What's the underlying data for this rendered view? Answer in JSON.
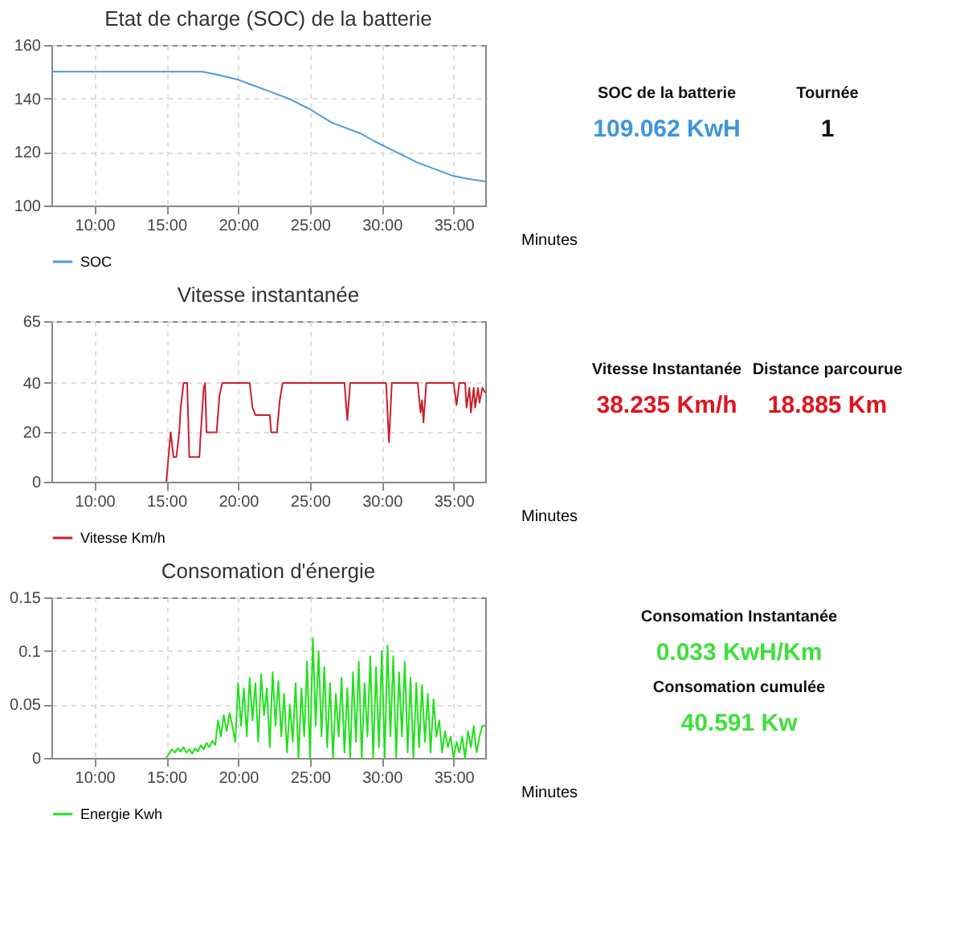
{
  "chart_data": [
    {
      "type": "line",
      "title": "Etat de charge (SOC) de la batterie",
      "xlabel": "Minutes",
      "x": [
        7,
        10,
        15,
        17.5,
        18.5,
        20,
        21,
        22,
        23.5,
        25,
        26.5,
        28.5,
        29.5,
        31,
        32.5,
        34,
        35,
        36,
        37.2
      ],
      "series": [
        {
          "name": "SOC",
          "color": "#4a9be0",
          "values": [
            150,
            150,
            150,
            150,
            149,
            147,
            145,
            143,
            140,
            136,
            131,
            127,
            124,
            120,
            116,
            113,
            111,
            110,
            109
          ]
        }
      ],
      "xlim": [
        7,
        37.2
      ],
      "xticks": [
        {
          "value": 10,
          "label": "10:00"
        },
        {
          "value": 15,
          "label": "15:00"
        },
        {
          "value": 20,
          "label": "20:00"
        },
        {
          "value": 25,
          "label": "25:00"
        },
        {
          "value": 30,
          "label": "30:00"
        },
        {
          "value": 35,
          "label": "35:00"
        }
      ],
      "ylim": [
        100,
        160
      ],
      "yticks": [
        100,
        120,
        140,
        160
      ],
      "grid": true,
      "legend": "bottom"
    },
    {
      "type": "other",
      "annotations": [
        "SOC de la batterie",
        "109.062 KwH",
        "Tournée",
        "1"
      ],
      "colors": [
        "#111111",
        "#3d95e0",
        "#111111",
        "#111111"
      ]
    },
    {
      "type": "line",
      "title": "Vitesse instantanée",
      "xlabel": "Minutes",
      "x": [
        15,
        15.3,
        15.5,
        15.7,
        15.9,
        16,
        16.2,
        16.45,
        16.6,
        17.3,
        17.4,
        17.6,
        17.7,
        17.8,
        18.5,
        18.7,
        18.9,
        20.8,
        21,
        21.2,
        22.2,
        22.3,
        22.7,
        22.9,
        23.1,
        27.4,
        27.6,
        27.8,
        30.3,
        30.5,
        30.7,
        32.5,
        32.7,
        32.8,
        32.9,
        33.1,
        35,
        35.2,
        35.4,
        35.8,
        35.9,
        36.1,
        36.2,
        36.4,
        36.5,
        36.7,
        36.8,
        37,
        37.2
      ],
      "series": [
        {
          "name": "Vitesse Km/h",
          "color": "#cc1f2a",
          "values": [
            0,
            20,
            10,
            10,
            20,
            30,
            40,
            40,
            10,
            10,
            20,
            38,
            40,
            20,
            20,
            35,
            40,
            40,
            30,
            27,
            27,
            20,
            20,
            33,
            40,
            40,
            25,
            40,
            40,
            16,
            40,
            40,
            28,
            33,
            24,
            40,
            40,
            31,
            40,
            40,
            30,
            38,
            28,
            38,
            30,
            38,
            32,
            38,
            36
          ]
        }
      ],
      "xlim": [
        7,
        37.2
      ],
      "xticks": [
        {
          "value": 10,
          "label": "10:00"
        },
        {
          "value": 15,
          "label": "15:00"
        },
        {
          "value": 20,
          "label": "20:00"
        },
        {
          "value": 25,
          "label": "25:00"
        },
        {
          "value": 30,
          "label": "30:00"
        },
        {
          "value": 35,
          "label": "35:00"
        }
      ],
      "ylim": [
        0,
        65
      ],
      "yticks": [
        0,
        20,
        40,
        65
      ],
      "grid": true,
      "legend": "bottom"
    },
    {
      "type": "other",
      "annotations": [
        "Vitesse Instantanée",
        "38.235  Km/h",
        "Distance parcourue",
        "18.885  Km"
      ],
      "colors": [
        "#111111",
        "#e0141e",
        "#111111",
        "#e0141e"
      ]
    },
    {
      "type": "line",
      "title": "Consomation d'énergie",
      "xlabel": "Minutes",
      "x": [
        15.0,
        15.2,
        15.4,
        15.6,
        15.8,
        16.0,
        16.2,
        16.4,
        16.6,
        16.8,
        17.0,
        17.2,
        17.4,
        17.6,
        17.8,
        18.0,
        18.2,
        18.4,
        18.6,
        18.8,
        19.0,
        19.2,
        19.4,
        19.6,
        19.8,
        20.0,
        20.2,
        20.4,
        20.6,
        20.8,
        21.0,
        21.2,
        21.4,
        21.6,
        21.8,
        22.0,
        22.2,
        22.4,
        22.6,
        22.8,
        23.0,
        23.2,
        23.4,
        23.6,
        23.8,
        24.0,
        24.2,
        24.4,
        24.6,
        24.8,
        25.0,
        25.2,
        25.4,
        25.6,
        25.8,
        26.0,
        26.2,
        26.4,
        26.6,
        26.8,
        27.0,
        27.2,
        27.4,
        27.6,
        27.8,
        28.0,
        28.2,
        28.4,
        28.6,
        28.8,
        29.0,
        29.2,
        29.4,
        29.6,
        29.8,
        30.0,
        30.2,
        30.4,
        30.6,
        30.8,
        31.0,
        31.2,
        31.4,
        31.6,
        31.8,
        32.0,
        32.2,
        32.4,
        32.6,
        32.8,
        33.0,
        33.2,
        33.4,
        33.6,
        33.8,
        34.0,
        34.2,
        34.4,
        34.6,
        34.8,
        35.0,
        35.2,
        35.4,
        35.6,
        35.8,
        36.0,
        36.2,
        36.4,
        36.6,
        36.8,
        37.0,
        37.2
      ],
      "series": [
        {
          "name": "Energie Kwh",
          "color": "#22e01e",
          "values": [
            0.0,
            0.004,
            0.008,
            0.005,
            0.009,
            0.006,
            0.01,
            0.005,
            0.008,
            0.004,
            0.009,
            0.006,
            0.012,
            0.008,
            0.014,
            0.01,
            0.016,
            0.012,
            0.035,
            0.02,
            0.04,
            0.025,
            0.042,
            0.03,
            0.015,
            0.07,
            0.03,
            0.065,
            0.02,
            0.075,
            0.035,
            0.07,
            0.015,
            0.078,
            0.04,
            0.065,
            0.01,
            0.08,
            0.03,
            0.072,
            0.02,
            0.06,
            0.005,
            0.05,
            0.015,
            0.07,
            0.0,
            0.065,
            0.02,
            0.09,
            0.0,
            0.112,
            0.03,
            0.1,
            0.02,
            0.085,
            0.01,
            0.07,
            0.0,
            0.06,
            0.02,
            0.075,
            0.005,
            0.065,
            0.0,
            0.08,
            0.015,
            0.09,
            0.0,
            0.07,
            0.02,
            0.095,
            0.0,
            0.085,
            0.01,
            0.1,
            0.0,
            0.105,
            0.02,
            0.095,
            0.0,
            0.08,
            0.02,
            0.09,
            0.005,
            0.075,
            0.0,
            0.07,
            0.01,
            0.068,
            0.015,
            0.06,
            0.005,
            0.055,
            0.02,
            0.035,
            0.005,
            0.025,
            0.01,
            0.02,
            0.0,
            0.015,
            0.005,
            0.02,
            0.0,
            0.025,
            0.01,
            0.03,
            0.005,
            0.02,
            0.03,
            0.03
          ]
        }
      ],
      "xlim": [
        7,
        37.2
      ],
      "xticks": [
        {
          "value": 10,
          "label": "10:00"
        },
        {
          "value": 15,
          "label": "15:00"
        },
        {
          "value": 20,
          "label": "20:00"
        },
        {
          "value": 25,
          "label": "25:00"
        },
        {
          "value": 30,
          "label": "30:00"
        },
        {
          "value": 35,
          "label": "35:00"
        }
      ],
      "ylim": [
        0,
        0.15
      ],
      "yticks": [
        0,
        0.05,
        0.1,
        0.15
      ],
      "grid": true,
      "legend": "bottom"
    },
    {
      "type": "other",
      "annotations": [
        "Consomation Instantanée",
        "0.033     KwH/Km",
        "Consomation cumulée",
        "40.591       Kw"
      ],
      "colors": [
        "#111111",
        "#3ee03a",
        "#111111",
        "#3ee03a"
      ]
    }
  ]
}
